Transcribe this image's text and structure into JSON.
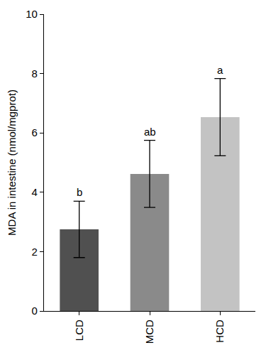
{
  "chart_data": {
    "type": "bar",
    "categories": [
      "LCD",
      "MCD",
      "HCD"
    ],
    "values": [
      2.75,
      4.62,
      6.53
    ],
    "errors": [
      0.95,
      1.13,
      1.3
    ],
    "colors": [
      "#505050",
      "#8a8a8a",
      "#c3c3c3"
    ],
    "annotations": [
      "b",
      "ab",
      "a"
    ],
    "y_label": "MDA in intestine (nmol/mgprot)",
    "ylim": [
      0,
      10
    ],
    "yticks": [
      0,
      2,
      4,
      6,
      8,
      10
    ],
    "grid": false
  }
}
